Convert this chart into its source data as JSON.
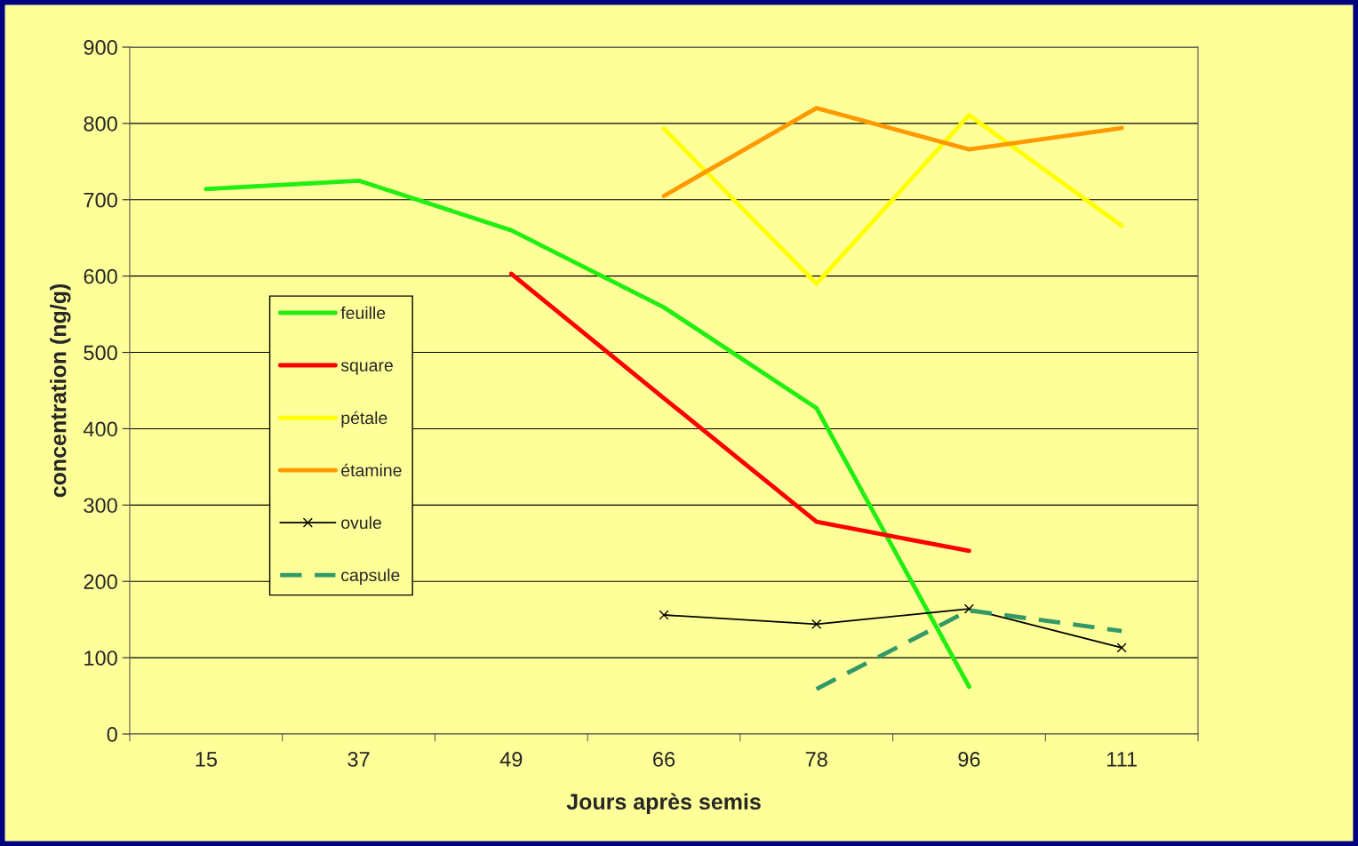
{
  "chart_data": {
    "type": "line",
    "xlabel": "Jours après semis",
    "ylabel": "concentration (ng/g)",
    "categories": [
      "15",
      "37",
      "49",
      "66",
      "78",
      "96",
      "111"
    ],
    "ylim": [
      0,
      900
    ],
    "yticks": [
      0,
      100,
      200,
      300,
      400,
      500,
      600,
      700,
      800,
      900
    ],
    "grid": "y",
    "legend": "left",
    "series": [
      {
        "name": "feuille",
        "color": "#22ee11",
        "values": [
          714,
          725,
          660,
          559,
          427,
          62,
          null
        ],
        "marker": "none",
        "line_style": "solid"
      },
      {
        "name": "square",
        "color": "#ff0000",
        "values": [
          null,
          null,
          603,
          440,
          278,
          240,
          null
        ],
        "marker": "none",
        "line_style": "solid"
      },
      {
        "name": "pétale",
        "color": "#ffff00",
        "values": [
          null,
          null,
          null,
          793,
          590,
          811,
          666
        ],
        "marker": "none",
        "line_style": "solid"
      },
      {
        "name": "étamine",
        "color": "#ff9900",
        "values": [
          null,
          null,
          null,
          705,
          820,
          766,
          794
        ],
        "marker": "none",
        "line_style": "solid"
      },
      {
        "name": "ovule",
        "color": "#000000",
        "values": [
          null,
          null,
          null,
          156,
          144,
          164,
          113
        ],
        "marker": "cross",
        "line_style": "solid"
      },
      {
        "name": "capsule",
        "color": "#339966",
        "values": [
          null,
          null,
          null,
          null,
          59,
          162,
          135
        ],
        "marker": "none",
        "line_style": "dashed"
      }
    ]
  }
}
